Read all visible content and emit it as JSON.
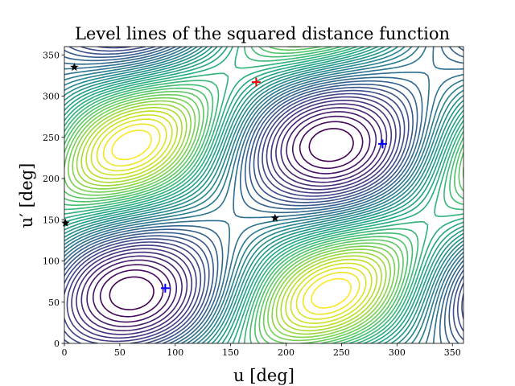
{
  "chart_data": {
    "type": "contour",
    "title": "Level lines of the squared distance function",
    "xlabel": "u [deg]",
    "ylabel": "u′ [deg]",
    "xlim": [
      0,
      360
    ],
    "ylim": [
      0,
      360
    ],
    "x_ticks": [
      0,
      50,
      100,
      150,
      200,
      250,
      300,
      350
    ],
    "y_ticks": [
      0,
      50,
      100,
      150,
      200,
      250,
      300,
      350
    ],
    "colormap": "viridis",
    "contour_levels": 40,
    "maxima_red_plus": [
      {
        "x": 173,
        "y": 317
      }
    ],
    "minima_blue_plus": [
      {
        "x": 91,
        "y": 67
      },
      {
        "x": 287,
        "y": 242
      }
    ],
    "saddles_black_star": [
      {
        "x": 9,
        "y": 335
      },
      {
        "x": 1,
        "y": 146
      },
      {
        "x": 190,
        "y": 152
      }
    ],
    "colors": {
      "maxima": "#ff0000",
      "minima": "#0000ff",
      "saddles": "#000000"
    }
  }
}
